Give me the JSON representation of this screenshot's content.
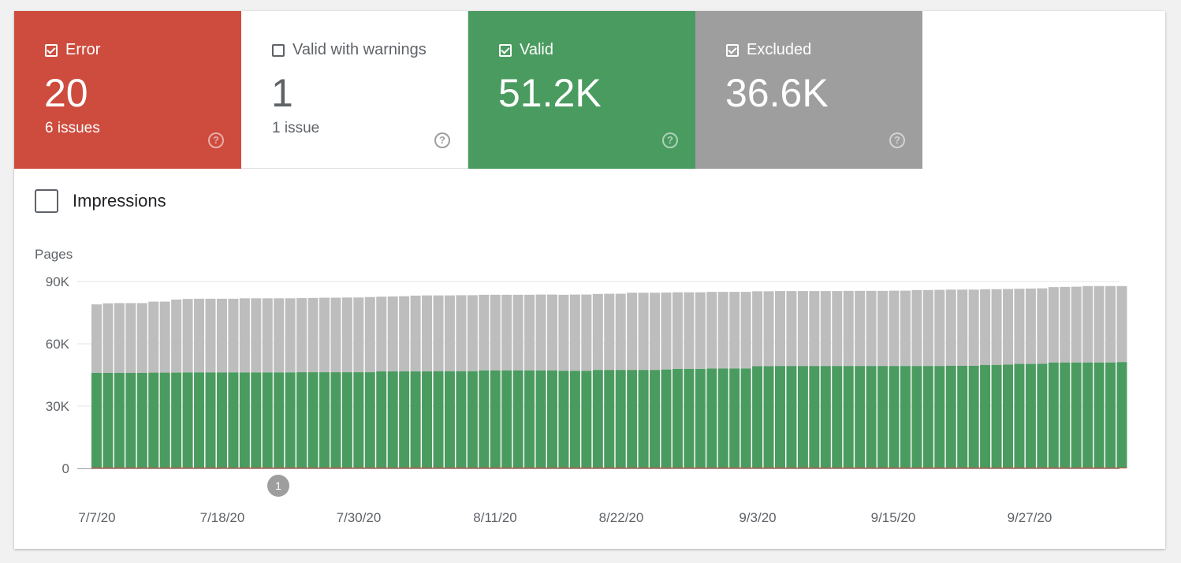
{
  "tiles": [
    {
      "key": "error",
      "label": "Error",
      "checked": true,
      "value": "20",
      "sub": "6 issues"
    },
    {
      "key": "warn",
      "label": "Valid with warnings",
      "checked": false,
      "value": "1",
      "sub": "1 issue"
    },
    {
      "key": "valid",
      "label": "Valid",
      "checked": true,
      "value": "51.2K",
      "sub": ""
    },
    {
      "key": "excl",
      "label": "Excluded",
      "checked": true,
      "value": "36.6K",
      "sub": ""
    }
  ],
  "help_glyph": "?",
  "impressions": {
    "label": "Impressions",
    "checked": false
  },
  "chart_data": {
    "type": "bar",
    "stacked": true,
    "ylabel": "Pages",
    "ylim": [
      0,
      90000
    ],
    "yticks": [
      0,
      30000,
      60000,
      90000
    ],
    "ytick_labels": [
      "0",
      "30K",
      "60K",
      "90K"
    ],
    "x_tick_labels": [
      {
        "index": 0,
        "label": "7/7/20"
      },
      {
        "index": 11,
        "label": "7/18/20"
      },
      {
        "index": 23,
        "label": "7/30/20"
      },
      {
        "index": 35,
        "label": "8/11/20"
      },
      {
        "index": 46,
        "label": "8/22/20"
      },
      {
        "index": 58,
        "label": "9/3/20"
      },
      {
        "index": 70,
        "label": "9/15/20"
      },
      {
        "index": 82,
        "label": "9/27/20"
      }
    ],
    "annotations": [
      {
        "index": 16,
        "label": "1"
      }
    ],
    "grid": true,
    "colors": {
      "valid": "#4a9b5f",
      "excluded": "#bdbdbd",
      "error": "#cd4c3e"
    },
    "series": [
      {
        "name": "Valid",
        "values": [
          46000,
          46000,
          46000,
          46000,
          46000,
          46100,
          46100,
          46100,
          46200,
          46200,
          46200,
          46200,
          46200,
          46200,
          46200,
          46200,
          46200,
          46200,
          46300,
          46300,
          46300,
          46300,
          46300,
          46300,
          46300,
          46700,
          46700,
          46700,
          46700,
          46700,
          46800,
          46800,
          46800,
          46800,
          47200,
          47200,
          47200,
          47200,
          47200,
          47200,
          47200,
          47000,
          47000,
          47000,
          47400,
          47400,
          47400,
          47400,
          47400,
          47400,
          47600,
          47900,
          47900,
          47900,
          48100,
          48100,
          48100,
          48100,
          49200,
          49200,
          49300,
          49300,
          49300,
          49300,
          49300,
          49300,
          49300,
          49300,
          49300,
          49300,
          49300,
          49300,
          49300,
          49300,
          49300,
          49400,
          49400,
          49400,
          49800,
          49800,
          50000,
          50300,
          50300,
          50400,
          51000,
          51000,
          51000,
          51000,
          51000,
          51000,
          51200
        ]
      },
      {
        "name": "Excluded",
        "values": [
          33000,
          33500,
          33600,
          33600,
          33600,
          34200,
          34200,
          35200,
          35400,
          35500,
          35500,
          35500,
          35500,
          35700,
          35700,
          35700,
          35700,
          35700,
          35700,
          35800,
          35900,
          35900,
          36000,
          36000,
          36200,
          36000,
          36100,
          36200,
          36500,
          36600,
          36500,
          36500,
          36600,
          36600,
          36400,
          36400,
          36400,
          36400,
          36400,
          36500,
          36500,
          36600,
          36700,
          36700,
          36600,
          36700,
          36700,
          37200,
          37200,
          37200,
          37100,
          36900,
          36900,
          36900,
          36900,
          36900,
          36900,
          36900,
          36100,
          36100,
          36100,
          36100,
          36100,
          36100,
          36100,
          36100,
          36200,
          36200,
          36200,
          36200,
          36300,
          36300,
          36600,
          36600,
          36700,
          36700,
          36700,
          36700,
          36500,
          36500,
          36400,
          36200,
          36300,
          36300,
          36300,
          36400,
          36500,
          36800,
          36800,
          36800,
          36600
        ]
      }
    ]
  }
}
